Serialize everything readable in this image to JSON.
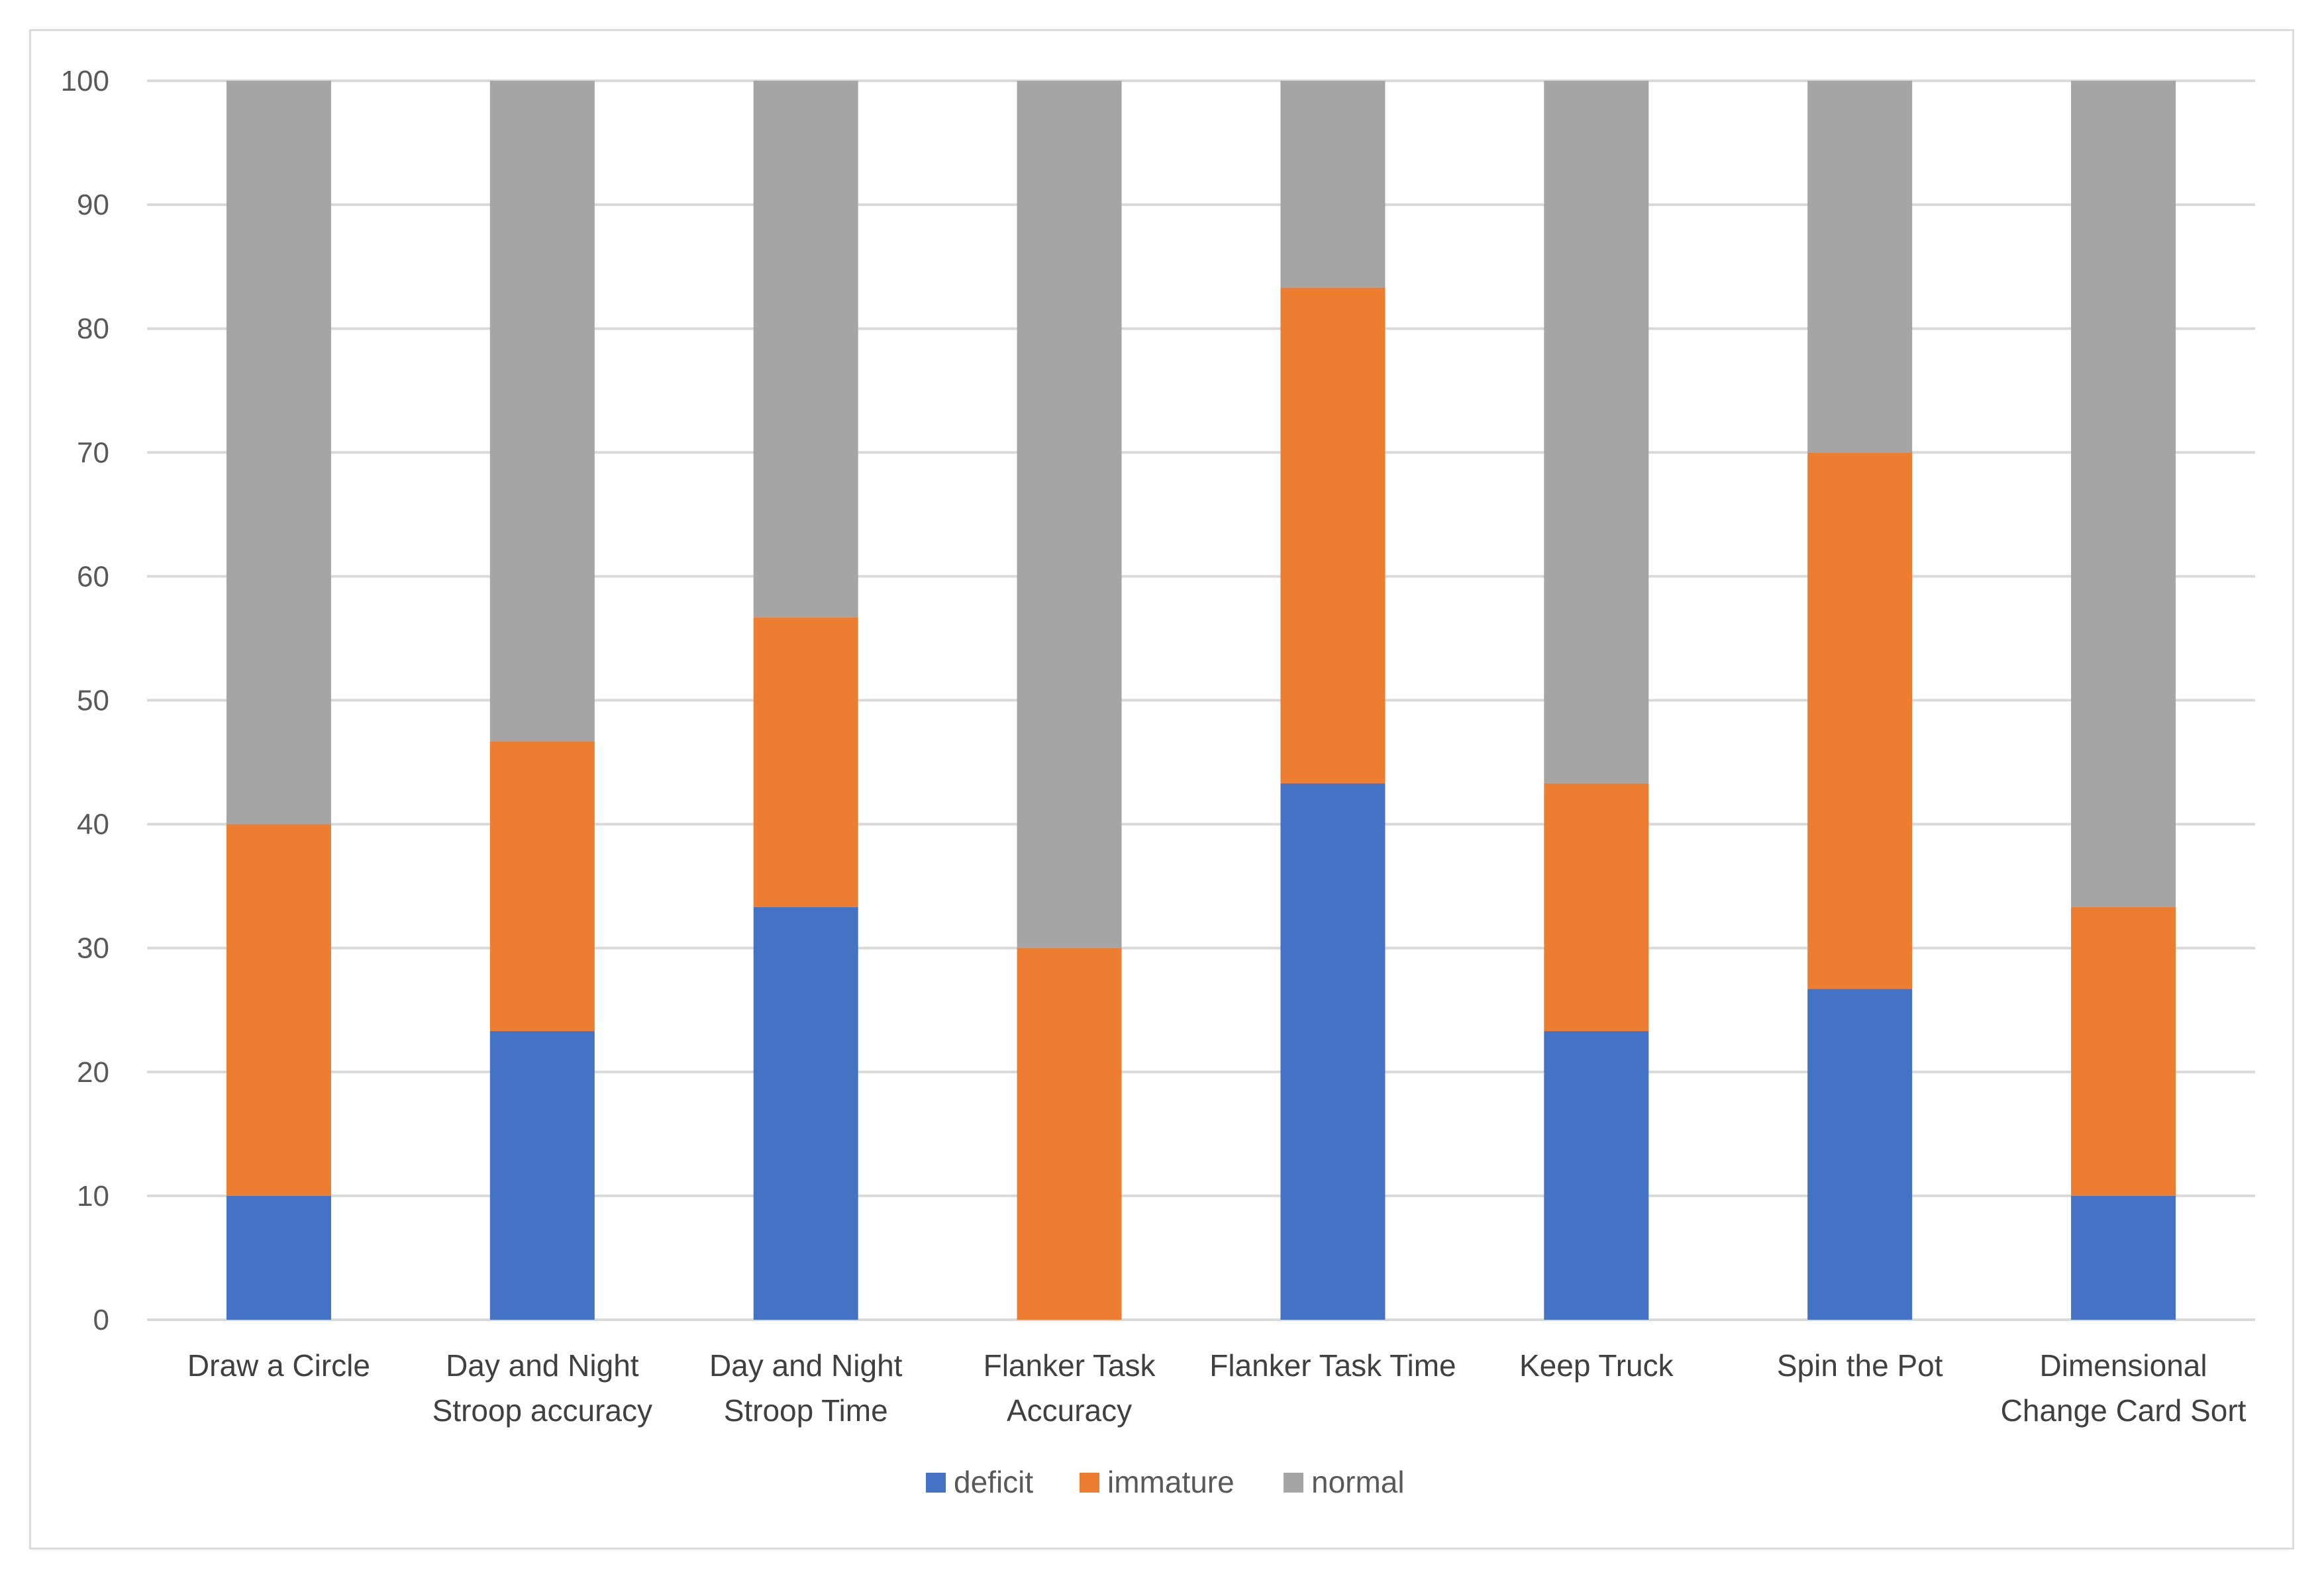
{
  "chart_data": {
    "type": "bar",
    "stacked": true,
    "title": "",
    "xlabel": "",
    "ylabel": "",
    "ylim": [
      0,
      100
    ],
    "yticks": [
      0,
      10,
      20,
      30,
      40,
      50,
      60,
      70,
      80,
      90,
      100
    ],
    "grid": true,
    "legend_position": "bottom",
    "categories": [
      [
        "Draw a Circle"
      ],
      [
        "Day and Night",
        "Stroop accuracy"
      ],
      [
        "Day and Night",
        "Stroop Time"
      ],
      [
        "Flanker Task",
        "Accuracy"
      ],
      [
        "Flanker Task Time"
      ],
      [
        "Keep Truck"
      ],
      [
        "Spin the Pot"
      ],
      [
        "Dimensional",
        "Change Card Sort"
      ]
    ],
    "series": [
      {
        "name": "deficit",
        "color": "#4472c4",
        "values": [
          10,
          23.3,
          33.3,
          0,
          43.3,
          23.3,
          26.7,
          10
        ]
      },
      {
        "name": "immature",
        "color": "#ed7d31",
        "values": [
          30,
          23.4,
          23.4,
          30,
          40,
          20,
          43.3,
          23.3
        ]
      },
      {
        "name": "normal",
        "color": "#a5a5a5",
        "values": [
          60,
          53.3,
          43.3,
          70,
          16.7,
          56.7,
          30,
          66.7
        ]
      }
    ]
  }
}
